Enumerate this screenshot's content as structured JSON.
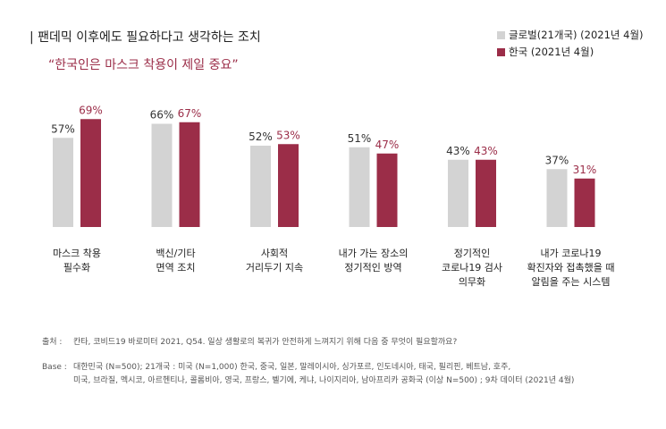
{
  "title": "| 팬데믹 이후에도  필요하다고 생각하는 조치",
  "subtitle": "“한국인은 마스크 착용이 제일 중요”",
  "colors": {
    "global": "#d3d3d3",
    "korea": "#9b2d48"
  },
  "chart_data": {
    "type": "bar",
    "title": "팬데믹 이후에도 필요하다고 생각하는 조치",
    "categories": [
      [
        "마스크 착용",
        "필수화"
      ],
      [
        "백신/기타",
        "면역 조치"
      ],
      [
        "사회적",
        "거리두기 지속"
      ],
      [
        "내가 가는 장소의",
        "정기적인 방역"
      ],
      [
        "정기적인",
        "코로나19 검사",
        "의무화"
      ],
      [
        "내가 코로나19",
        "확진자와 접촉했을 때",
        "알림을 주는 시스템"
      ]
    ],
    "series": [
      {
        "name": "글로벌(21개국) (2021년 4월)",
        "values": [
          57,
          66,
          52,
          51,
          43,
          37
        ],
        "labels": [
          "57%",
          "66%",
          "52%",
          "51%",
          "43%",
          "37%"
        ]
      },
      {
        "name": "한국 (2021년 4월)",
        "values": [
          69,
          67,
          53,
          47,
          43,
          31
        ],
        "labels": [
          "69%",
          "67%",
          "53%",
          "47%",
          "43%",
          "31%"
        ]
      }
    ],
    "ylim": [
      0,
      100
    ],
    "legend": "top-right",
    "grid": false
  },
  "footer": {
    "source_label": "출처 :",
    "source": "칸타, 코비드19 바로미터 2021, Q54. 일상 생활로의 복귀가 안전하게 느껴지기 위해 다음 중 무엇이 필요할까요?",
    "base_label": "Base :",
    "base_line1": "대한민국 (N=500); 21개국 : 미국 (N=1,000) 한국, 중국, 일본, 말레이시아, 싱가포르, 인도네시아, 태국, 필리핀, 베트남, 호주,",
    "base_line2": "미국, 브라질, 멕시코, 아르헨티나, 콜롬비아, 영국, 프랑스, 벨기에, 케냐, 나이지리아, 남아프리카 공화국 (이상 N=500) ; 9차 데이터 (2021년 4월)"
  }
}
